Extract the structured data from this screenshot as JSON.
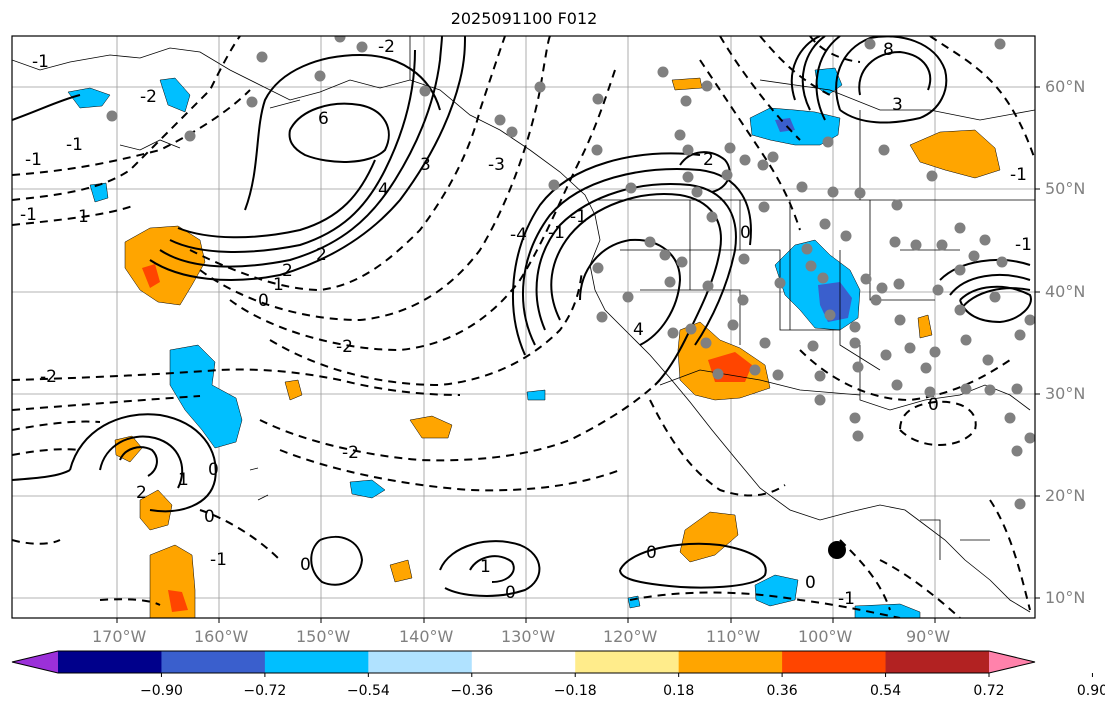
{
  "title": "2025091100 F012",
  "lat_labels": [
    "60°N",
    "50°N",
    "40°N",
    "30°N",
    "20°N",
    "10°N"
  ],
  "lon_labels": [
    "170°W",
    "160°W",
    "150°W",
    "140°W",
    "130°W",
    "120°W",
    "110°W",
    "100°W",
    "90°W"
  ],
  "colorbar": {
    "tick_labels": [
      "−0.90",
      "−0.72",
      "−0.54",
      "−0.36",
      "−0.18",
      "0.18",
      "0.36",
      "0.54",
      "0.72",
      "0.90"
    ],
    "colors": [
      "#9b30d9",
      "#00008b",
      "#3a5fcd",
      "#00bfff",
      "#b0e2ff",
      "#ffffff",
      "#ffec8b",
      "#ffa500",
      "#ff4500",
      "#b22222",
      "#ff82ab"
    ]
  },
  "contour_labels": {
    "dashed": [
      "-2",
      "-2",
      "-2",
      "-2",
      "-2",
      "-1",
      "-1",
      "-1",
      "-1",
      "-1",
      "-1",
      "-3",
      "-4",
      "-1",
      "-1",
      "-1",
      "-1",
      "0"
    ],
    "solid": [
      "6",
      "4",
      "3",
      "2",
      "2",
      "1",
      "1",
      "0",
      "0",
      "0",
      "0",
      "0",
      "2",
      "4",
      "0",
      "2",
      "1",
      "0",
      "8",
      "3",
      "1",
      "0"
    ]
  },
  "fill_colors": {
    "orange": "#ffa500",
    "red": "#ff4500",
    "blue": "#00bfff",
    "darkblue": "#3a5fcd"
  },
  "dot_color": "#808080"
}
